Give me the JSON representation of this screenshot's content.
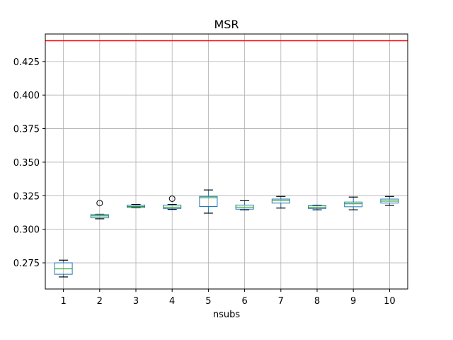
{
  "chart_data": {
    "type": "box",
    "title": "MSR",
    "xlabel": "nsubs",
    "ylabel": "",
    "categories": [
      "1",
      "2",
      "3",
      "4",
      "5",
      "6",
      "7",
      "8",
      "9",
      "10"
    ],
    "ylim": [
      0.2555,
      0.4455
    ],
    "yticks": [
      0.275,
      0.3,
      0.325,
      0.35,
      0.375,
      0.4,
      0.425
    ],
    "ytick_labels": [
      "0.275",
      "0.300",
      "0.325",
      "0.350",
      "0.375",
      "0.400",
      "0.425"
    ],
    "grid": true,
    "reference_line": {
      "y": 0.4405,
      "color": "#ff0000"
    },
    "colors": {
      "box": "#1f77b4",
      "median": "#2ca02c",
      "whisker": "#000000",
      "grid": "#b0b0b0"
    },
    "boxes": [
      {
        "category": "1",
        "whislo": 0.2645,
        "q1": 0.2665,
        "med": 0.2705,
        "q3": 0.275,
        "whishi": 0.277,
        "fliers": []
      },
      {
        "category": "2",
        "whislo": 0.3078,
        "q1": 0.3085,
        "med": 0.31,
        "q3": 0.311,
        "whishi": 0.3112,
        "fliers": [
          0.3195
        ]
      },
      {
        "category": "3",
        "whislo": 0.316,
        "q1": 0.3163,
        "med": 0.317,
        "q3": 0.318,
        "whishi": 0.3185,
        "fliers": []
      },
      {
        "category": "4",
        "whislo": 0.3148,
        "q1": 0.3155,
        "med": 0.3165,
        "q3": 0.318,
        "whishi": 0.3185,
        "fliers": [
          0.3228
        ]
      },
      {
        "category": "5",
        "whislo": 0.312,
        "q1": 0.317,
        "med": 0.3235,
        "q3": 0.3245,
        "whishi": 0.3293,
        "fliers": []
      },
      {
        "category": "6",
        "whislo": 0.3145,
        "q1": 0.315,
        "med": 0.3165,
        "q3": 0.318,
        "whishi": 0.3213,
        "fliers": []
      },
      {
        "category": "7",
        "whislo": 0.3158,
        "q1": 0.3195,
        "med": 0.3215,
        "q3": 0.3225,
        "whishi": 0.3245,
        "fliers": []
      },
      {
        "category": "8",
        "whislo": 0.3145,
        "q1": 0.3155,
        "med": 0.3165,
        "q3": 0.3175,
        "whishi": 0.3178,
        "fliers": []
      },
      {
        "category": "9",
        "whislo": 0.3145,
        "q1": 0.3168,
        "med": 0.319,
        "q3": 0.3203,
        "whishi": 0.324,
        "fliers": []
      },
      {
        "category": "10",
        "whislo": 0.3178,
        "q1": 0.3195,
        "med": 0.321,
        "q3": 0.3225,
        "whishi": 0.3245,
        "fliers": []
      }
    ]
  }
}
